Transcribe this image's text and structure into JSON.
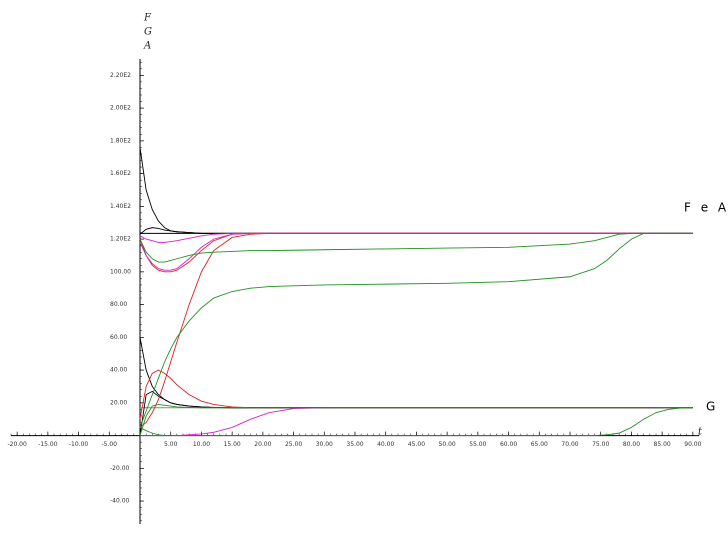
{
  "chart_data": {
    "type": "line",
    "y_label_lines": [
      "F",
      "G",
      "A"
    ],
    "x_label": "t",
    "annotations": [
      "F e A",
      "G"
    ],
    "xlim": [
      -21,
      91
    ],
    "ylim": [
      -54,
      230
    ],
    "xticks": [
      {
        "value": -20,
        "label": "-20.00"
      },
      {
        "value": -15,
        "label": "-15.00"
      },
      {
        "value": -10,
        "label": "-10.00"
      },
      {
        "value": -5,
        "label": "-5.00"
      },
      {
        "value": 5,
        "label": "5.00"
      },
      {
        "value": 10,
        "label": "10.00"
      },
      {
        "value": 15,
        "label": "15.00"
      },
      {
        "value": 20,
        "label": "20.00"
      },
      {
        "value": 25,
        "label": "25.00"
      },
      {
        "value": 30,
        "label": "30.00"
      },
      {
        "value": 35,
        "label": "35.00"
      },
      {
        "value": 40,
        "label": "40.00"
      },
      {
        "value": 45,
        "label": "45.00"
      },
      {
        "value": 50,
        "label": "50.00"
      },
      {
        "value": 55,
        "label": "55.00"
      },
      {
        "value": 60,
        "label": "60.00"
      },
      {
        "value": 65,
        "label": "65.00"
      },
      {
        "value": 70,
        "label": "70.00"
      },
      {
        "value": 75,
        "label": "75.00"
      },
      {
        "value": 80,
        "label": "80.00"
      },
      {
        "value": 85,
        "label": "85.00"
      },
      {
        "value": 90,
        "label": "90.00"
      }
    ],
    "yticks": [
      {
        "value": -40,
        "label": "-40.00"
      },
      {
        "value": -20,
        "label": "-20.00"
      },
      {
        "value": 20,
        "label": "20.00"
      },
      {
        "value": 40,
        "label": "40.00"
      },
      {
        "value": 60,
        "label": "60.00"
      },
      {
        "value": 80,
        "label": "80.00"
      },
      {
        "value": 100,
        "label": "100.00"
      },
      {
        "value": 120,
        "label": "1.20E2"
      },
      {
        "value": 140,
        "label": "1.40E2"
      },
      {
        "value": 160,
        "label": "1.60E2"
      },
      {
        "value": 180,
        "label": "1.80E2"
      },
      {
        "value": 200,
        "label": "2.00E2"
      },
      {
        "value": 220,
        "label": "2.20E2"
      }
    ],
    "x": [
      0,
      1,
      2,
      3,
      4,
      5,
      6,
      8,
      10,
      12,
      15,
      18,
      21,
      25,
      30,
      40,
      50,
      60,
      70,
      74,
      76,
      78,
      80,
      82,
      84,
      86,
      88,
      90
    ],
    "series": [
      {
        "color": "#000000",
        "values": [
          176,
          150,
          138,
          131,
          127,
          125,
          124.5,
          124,
          123.5,
          123.5,
          123.5,
          123.5,
          123.5,
          123.5,
          123.5,
          123.5,
          123.5,
          123.5,
          123.5,
          123.5,
          123.5,
          123.5,
          123.5,
          123.5,
          123.5,
          123.5,
          123.5,
          123.5
        ]
      },
      {
        "color": "#000000",
        "values": [
          123,
          126,
          127,
          126.5,
          125.5,
          125,
          124.5,
          124,
          123.5,
          123.5,
          123.5,
          123.5,
          123.5,
          123.5,
          123.5,
          123.5,
          123.5,
          123.5,
          123.5,
          123.5,
          123.5,
          123.5,
          123.5,
          123.5,
          123.5,
          123.5,
          123.5,
          123.5
        ]
      },
      {
        "color": "#000000",
        "values": [
          123.5,
          123.5,
          123.5,
          123.5,
          123.5,
          123.5,
          123.5,
          123.5,
          123.5,
          123.5,
          123.5,
          123.5,
          123.5,
          123.5,
          123.5,
          123.5,
          123.5,
          123.5,
          123.5,
          123.5,
          123.5,
          123.5,
          123.5,
          123.5,
          123.5,
          123.5,
          123.5,
          123.5
        ]
      },
      {
        "color": "#6a9a6a",
        "values": [
          17,
          17,
          17,
          17,
          17,
          17,
          17,
          17,
          17,
          17,
          17,
          17,
          17,
          17,
          17,
          17,
          17,
          17,
          17,
          17,
          17,
          17,
          17,
          17,
          17,
          17,
          17,
          17
        ]
      },
      {
        "color": "#000000",
        "values": [
          60,
          40,
          30,
          25,
          22,
          20,
          19,
          18,
          17.5,
          17.2,
          17,
          17,
          17,
          17,
          17,
          17,
          17,
          17,
          17,
          17,
          17,
          17,
          17,
          17,
          17,
          17,
          17,
          17
        ]
      },
      {
        "color": "#000000",
        "values": [
          0,
          25,
          27,
          24,
          22,
          20,
          19,
          18,
          17.5,
          17.2,
          17,
          17,
          17,
          17,
          17,
          17,
          17,
          17,
          17,
          17,
          17,
          17,
          17,
          17,
          17,
          17,
          17,
          17
        ]
      },
      {
        "color": "#e02020",
        "values": [
          120,
          110,
          104,
          101,
          100,
          100,
          101,
          106,
          113,
          119,
          123,
          123.5,
          123.5,
          123.5,
          123.5,
          123.5,
          123.5,
          123.5,
          123.5,
          123.5,
          123.5,
          123.5,
          123.5,
          123.5,
          123.5,
          123.5,
          123.5,
          123.5
        ]
      },
      {
        "color": "#e02020",
        "values": [
          5,
          8,
          14,
          22,
          33,
          45,
          57,
          80,
          100,
          113,
          121,
          123,
          123.5,
          123.5,
          123.5,
          123.5,
          123.5,
          123.5,
          123.5,
          123.5,
          123.5,
          123.5,
          123.5,
          123.5,
          123.5,
          123.5,
          123.5,
          123.5
        ]
      },
      {
        "color": "#e02020",
        "values": [
          10,
          30,
          38,
          40,
          38,
          35,
          31,
          25,
          21,
          19,
          17.5,
          17,
          17,
          17,
          17,
          17,
          17,
          17,
          17,
          17,
          17,
          17,
          17,
          17,
          17,
          17,
          17,
          17
        ]
      },
      {
        "color": "#d020d0",
        "values": [
          118,
          110,
          105,
          102,
          101,
          101,
          102,
          108,
          115,
          120,
          123,
          123.5,
          123.5,
          123.5,
          123.5,
          123.5,
          123.5,
          123.5,
          123.5,
          123.5,
          123.5,
          123.5,
          123.5,
          123.5,
          123.5,
          123.5,
          123.5,
          123.5
        ]
      },
      {
        "color": "#d020d0",
        "values": [
          122,
          120,
          119,
          118,
          118,
          118.5,
          119,
          120.5,
          122,
          123,
          123.5,
          123.5,
          123.5,
          123.5,
          123.5,
          123.5,
          123.5,
          123.5,
          123.5,
          123.5,
          123.5,
          123.5,
          123.5,
          123.5,
          123.5,
          123.5,
          123.5,
          123.5
        ]
      },
      {
        "color": "#d020d0",
        "values": [
          0,
          0,
          0,
          0,
          0,
          0,
          0,
          0.5,
          1,
          2,
          5,
          10,
          14,
          16.5,
          17,
          17,
          17,
          17,
          17,
          17,
          17,
          17,
          17,
          17,
          17,
          17,
          17,
          17
        ]
      },
      {
        "color": "#209020",
        "values": [
          120,
          112,
          108,
          106,
          106,
          107,
          108,
          110,
          111.5,
          112,
          112.5,
          113,
          113,
          113.2,
          113.5,
          114,
          114.5,
          115,
          117,
          119,
          121,
          123,
          123.5,
          123.5,
          123.5,
          123.5,
          123.5,
          123.5
        ]
      },
      {
        "color": "#209020",
        "values": [
          5,
          15,
          25,
          35,
          45,
          53,
          60,
          70,
          78,
          84,
          88,
          90,
          91,
          91.5,
          92,
          92.5,
          93,
          94,
          97,
          102,
          107,
          114,
          120,
          123.5,
          123.5,
          123.5,
          123.5,
          123.5
        ]
      },
      {
        "color": "#209020",
        "values": [
          5,
          3,
          1.5,
          0.5,
          0,
          0,
          0,
          0,
          0,
          0,
          0,
          0,
          0,
          0,
          0,
          0,
          0,
          0,
          0,
          0,
          0.5,
          1.5,
          5,
          10,
          14,
          16,
          16.8,
          17
        ]
      },
      {
        "color": "#209020",
        "values": [
          0,
          12,
          18,
          19,
          18.5,
          18,
          17.5,
          17.2,
          17,
          17,
          17,
          17,
          17,
          17,
          17,
          17,
          17,
          17,
          17,
          17,
          17,
          17,
          17,
          17,
          17,
          17,
          17,
          17
        ]
      }
    ]
  }
}
